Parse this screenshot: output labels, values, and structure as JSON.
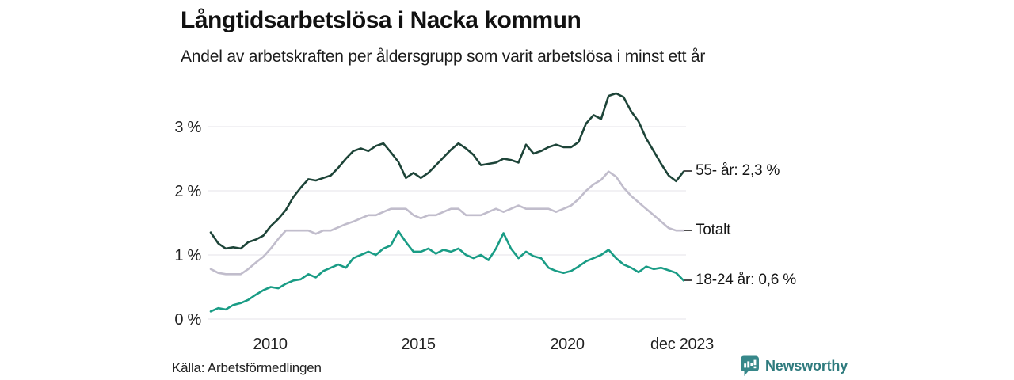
{
  "header": {
    "title": "Långtidsarbetslösa i Nacka kommun",
    "subtitle": "Andel av arbetskraften per åldersgrupp som varit arbetslösa i minst ett år"
  },
  "footer": {
    "source": "Källa: Arbetsförmedlingen",
    "brand": "Newsworthy",
    "brand_color": "#2f7b7e",
    "brand_icon": "speech-bubble-bar-chart-icon"
  },
  "chart_data": {
    "type": "line",
    "title": "Långtidsarbetslösa i Nacka kommun",
    "subtitle": "Andel av arbetskraften per åldersgrupp som varit arbetslösa i minst ett år",
    "unit": "%",
    "grid": true,
    "legend_position": "end-of-line-labels-right",
    "x_axis": {
      "start_year": 2008,
      "end": "dec 2023",
      "frequency": "quarterly",
      "ticks": [
        "2010",
        "2015",
        "2020",
        "dec 2023"
      ]
    },
    "y_axis": {
      "ticks": [
        "0 %",
        "1 %",
        "2 %",
        "3 %"
      ],
      "tick_values": [
        0,
        1,
        2,
        3
      ],
      "ylim": [
        0,
        3.75
      ]
    },
    "series": [
      {
        "name": "Totalt",
        "label": "Totalt",
        "color": "#c1bdcc",
        "final_value": 1.38,
        "values": [
          0.78,
          0.72,
          0.7,
          0.7,
          0.7,
          0.78,
          0.88,
          0.97,
          1.1,
          1.25,
          1.38,
          1.38,
          1.38,
          1.38,
          1.33,
          1.38,
          1.38,
          1.43,
          1.48,
          1.52,
          1.57,
          1.62,
          1.62,
          1.67,
          1.72,
          1.72,
          1.72,
          1.62,
          1.57,
          1.62,
          1.62,
          1.67,
          1.72,
          1.72,
          1.62,
          1.62,
          1.62,
          1.67,
          1.72,
          1.67,
          1.72,
          1.77,
          1.72,
          1.72,
          1.72,
          1.72,
          1.67,
          1.72,
          1.77,
          1.87,
          2.0,
          2.1,
          2.17,
          2.3,
          2.22,
          2.05,
          1.92,
          1.82,
          1.72,
          1.62,
          1.52,
          1.42,
          1.38,
          1.38
        ]
      },
      {
        "name": "55- år",
        "label": "55- år: 2,3 %",
        "color": "#1d4438",
        "final_value": 2.3,
        "values": [
          1.35,
          1.18,
          1.1,
          1.12,
          1.1,
          1.2,
          1.24,
          1.3,
          1.45,
          1.56,
          1.7,
          1.9,
          2.05,
          2.18,
          2.16,
          2.2,
          2.24,
          2.36,
          2.5,
          2.62,
          2.66,
          2.62,
          2.7,
          2.74,
          2.6,
          2.45,
          2.2,
          2.28,
          2.2,
          2.28,
          2.4,
          2.52,
          2.64,
          2.74,
          2.66,
          2.56,
          2.4,
          2.42,
          2.44,
          2.5,
          2.48,
          2.44,
          2.72,
          2.58,
          2.62,
          2.68,
          2.72,
          2.68,
          2.68,
          2.76,
          3.05,
          3.18,
          3.12,
          3.48,
          3.52,
          3.46,
          3.24,
          3.08,
          2.82,
          2.62,
          2.42,
          2.24,
          2.15,
          2.3
        ]
      },
      {
        "name": "18-24 år",
        "label": "18-24 år: 0,6 %",
        "color": "#199c85",
        "final_value": 0.6,
        "values": [
          0.12,
          0.17,
          0.15,
          0.22,
          0.25,
          0.3,
          0.38,
          0.45,
          0.5,
          0.48,
          0.55,
          0.6,
          0.62,
          0.7,
          0.65,
          0.75,
          0.8,
          0.85,
          0.8,
          0.95,
          1.0,
          1.05,
          1.0,
          1.1,
          1.15,
          1.37,
          1.2,
          1.05,
          1.05,
          1.1,
          1.02,
          1.08,
          1.05,
          1.1,
          1.0,
          0.95,
          1.0,
          0.92,
          1.1,
          1.34,
          1.1,
          0.95,
          1.05,
          0.98,
          0.95,
          0.8,
          0.75,
          0.72,
          0.75,
          0.82,
          0.9,
          0.95,
          1.0,
          1.08,
          0.95,
          0.85,
          0.8,
          0.73,
          0.82,
          0.78,
          0.8,
          0.76,
          0.72,
          0.6
        ]
      }
    ]
  }
}
